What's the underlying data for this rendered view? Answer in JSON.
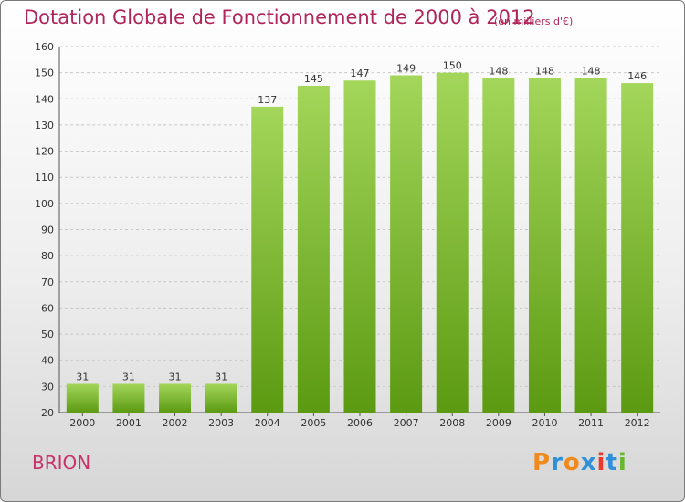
{
  "title": "Dotation Globale de Fonctionnement de 2000 à 2012",
  "unit_note": "(en milliers d'€)",
  "commune": "BRION",
  "logo": {
    "text": "Proxiti",
    "letters": [
      "P",
      "r",
      "o",
      "x",
      "i",
      "t",
      "i"
    ],
    "colors": [
      "#f08a1c",
      "#2f8fd8",
      "#f08a1c",
      "#2f8fd8",
      "#e63b2e",
      "#2f8fd8",
      "#66b82e"
    ]
  },
  "colors": {
    "title": "#b0265a",
    "bar_top": "#a3d65a",
    "bar_bottom": "#5c9a12"
  },
  "chart_data": {
    "type": "bar",
    "categories": [
      "2000",
      "2001",
      "2002",
      "2003",
      "2004",
      "2005",
      "2006",
      "2007",
      "2008",
      "2009",
      "2010",
      "2011",
      "2012"
    ],
    "values": [
      31,
      31,
      31,
      31,
      137,
      145,
      147,
      149,
      150,
      148,
      148,
      148,
      146
    ],
    "ylim": [
      20,
      160
    ],
    "yticks": [
      20,
      30,
      40,
      50,
      60,
      70,
      80,
      90,
      100,
      110,
      120,
      130,
      140,
      150,
      160
    ],
    "grid": true,
    "legend": "none"
  }
}
